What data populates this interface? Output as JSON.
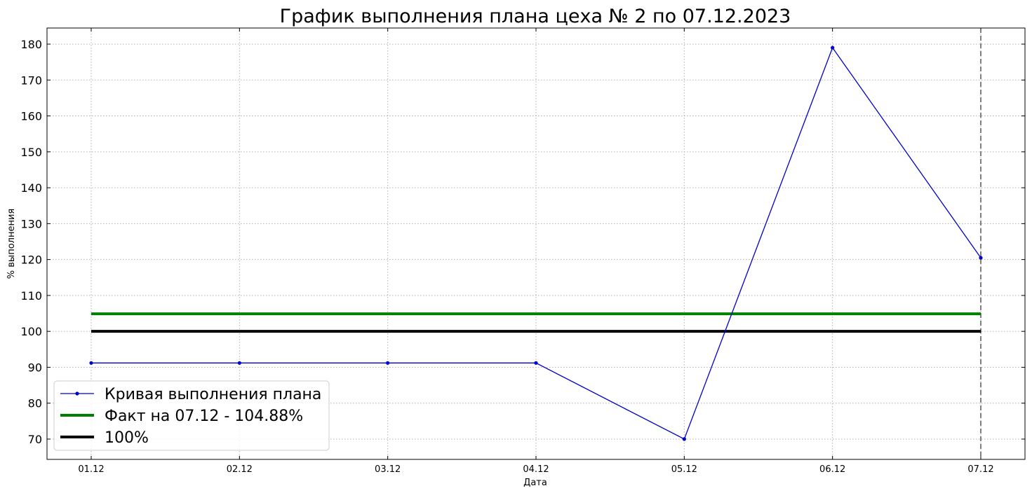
{
  "chart_data": {
    "type": "line",
    "title": "График выполнения плана цеха № 2 по 07.12.2023",
    "xlabel": "Дата",
    "ylabel": "% выполнения",
    "categories": [
      "01.12",
      "02.12",
      "03.12",
      "04.12",
      "05.12",
      "06.12",
      "07.12"
    ],
    "ylim": [
      65,
      184.5
    ],
    "yticks": [
      70,
      80,
      90,
      100,
      110,
      120,
      130,
      140,
      150,
      160,
      170,
      180
    ],
    "grid": true,
    "legend_position": "lower-left",
    "series": [
      {
        "name": "Кривая выполнения плана",
        "values": [
          91.2,
          91.2,
          91.2,
          91.2,
          70.0,
          179.0,
          120.5
        ],
        "color": "#0000cc",
        "style": "line-with-markers"
      },
      {
        "name": "Факт на 07.12 - 104.88%",
        "values": [
          104.88,
          104.88,
          104.88,
          104.88,
          104.88,
          104.88,
          104.88
        ],
        "color": "#008000",
        "style": "thick-line"
      },
      {
        "name": "100%",
        "values": [
          100,
          100,
          100,
          100,
          100,
          100,
          100
        ],
        "color": "#000000",
        "style": "thick-line"
      }
    ],
    "annotations": [
      {
        "type": "vertical-dashed-line",
        "x": "07.12",
        "color": "#808080"
      }
    ]
  }
}
